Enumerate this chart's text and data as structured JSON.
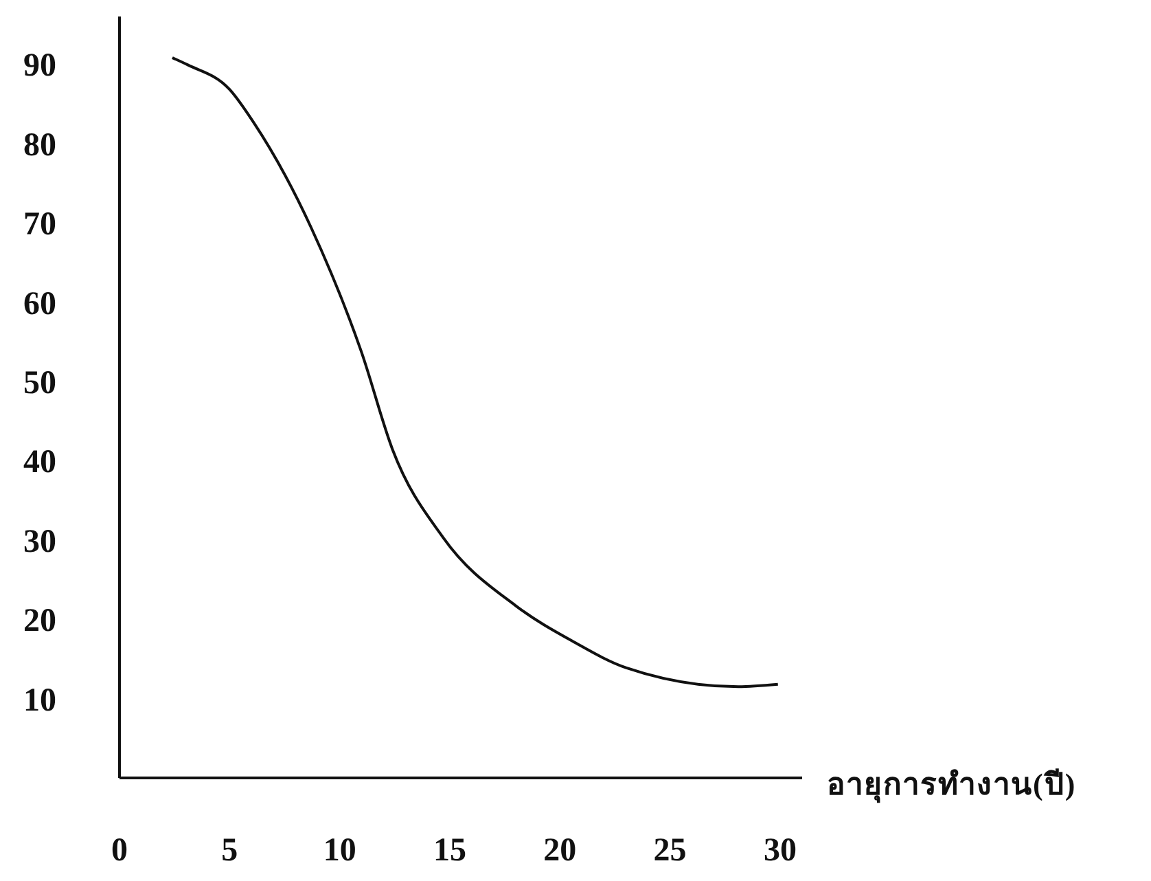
{
  "chart_data": {
    "type": "line",
    "xlabel": "อายุการทำงาน(ปี)",
    "series": [
      {
        "color": "#111111",
        "x": [
          2.4,
          3.1,
          5,
          6.1,
          8.7,
          11,
          12.4,
          14.7,
          18,
          20.6,
          23,
          28.1,
          29.9
        ],
        "values": [
          90.8,
          89.9,
          86.8,
          82.6,
          69.4,
          53.6,
          41.4,
          30.3,
          21.7,
          17.2,
          13.9,
          11.5,
          11.8
        ]
      }
    ],
    "xlim": [
      0,
      31
    ],
    "xticks": [
      0,
      5,
      10,
      15,
      20,
      25,
      30
    ],
    "ylim": [
      0,
      96
    ],
    "yticks": [
      10,
      20,
      30,
      40,
      50,
      60,
      70,
      80,
      90
    ],
    "grid": false,
    "legend": false,
    "marker": "none",
    "line_style": "solid"
  }
}
